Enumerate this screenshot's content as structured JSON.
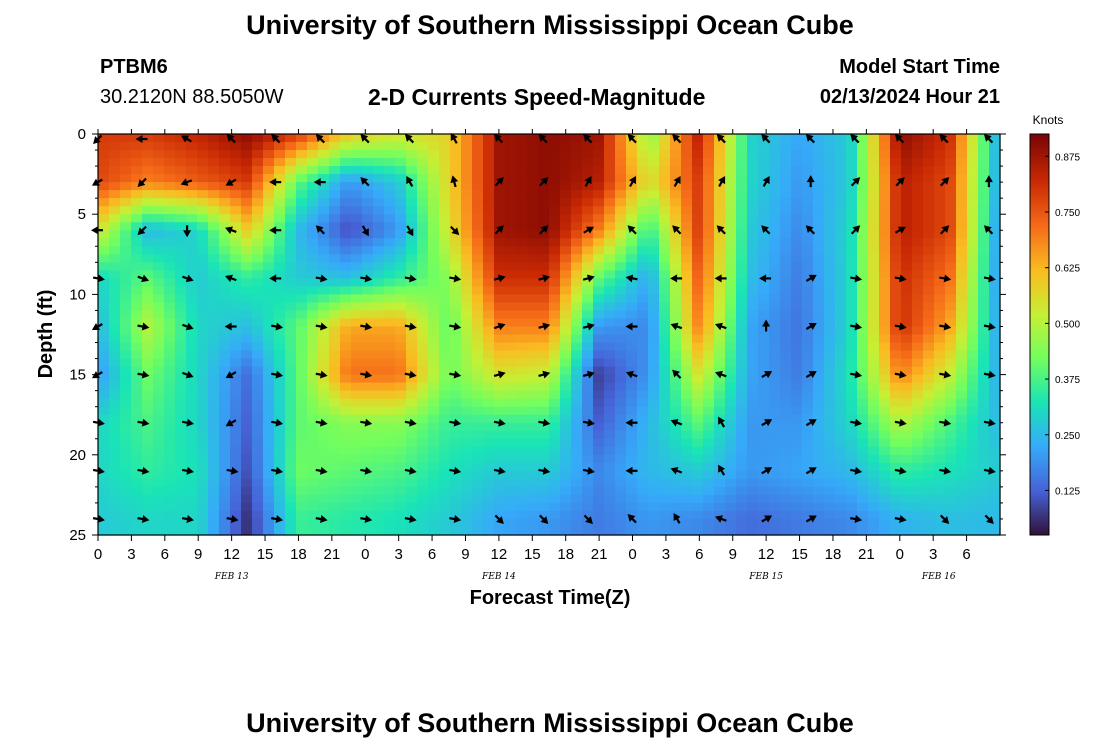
{
  "header": {
    "title": "University of Southern Mississippi Ocean Cube",
    "station": "PTBM6",
    "coords": "30.2120N  88.5050W",
    "subtitle": "2-D Currents Speed-Magnitude",
    "model_start_label": "Model Start Time",
    "model_start_value": "02/13/2024 Hour 21"
  },
  "footer": {
    "title": "University of Southern Mississippi Ocean Cube"
  },
  "chart_data": {
    "type": "heatmap",
    "xlabel": "Forecast Time(Z)",
    "ylabel": "Depth (ft)",
    "y_ticks": [
      "0",
      "5",
      "10",
      "15",
      "20",
      "25"
    ],
    "y_range": [
      0,
      25
    ],
    "x_range_hours": [
      0,
      81
    ],
    "x_ticks": [
      "0",
      "3",
      "6",
      "9",
      "12",
      "15",
      "18",
      "21",
      "0",
      "3",
      "6",
      "9",
      "12",
      "15",
      "18",
      "21",
      "0",
      "3",
      "6",
      "9",
      "12",
      "15",
      "18",
      "21",
      "0",
      "3",
      "6"
    ],
    "date_labels": [
      {
        "text": "FEB 13",
        "hour": 12
      },
      {
        "text": "FEB 14",
        "hour": 36
      },
      {
        "text": "FEB 15",
        "hour": 60
      },
      {
        "text": "FEB 16",
        "hour": 75.5
      }
    ],
    "colorbar": {
      "unit": "Knots",
      "range": [
        0.025,
        0.925
      ],
      "ticks": [
        "0.125",
        "0.250",
        "0.375",
        "0.500",
        "0.625",
        "0.750",
        "0.875"
      ],
      "tick_values": [
        0.125,
        0.25,
        0.375,
        0.5,
        0.625,
        0.75,
        0.875
      ],
      "colormap": [
        "#30123b",
        "#4662d7",
        "#36aaf9",
        "#1ae4b6",
        "#72fe5e",
        "#c7ef34",
        "#fabb21",
        "#f66b19",
        "#ca2a04",
        "#7a0403"
      ]
    },
    "depths": [
      0,
      3,
      6,
      9,
      12,
      15,
      18,
      21,
      24
    ],
    "hours": [
      0,
      4.5,
      9,
      13.5,
      18,
      22.5,
      27,
      31.5,
      36,
      40.5,
      45,
      49.5,
      54,
      58.5,
      63,
      67.5,
      72,
      76.5,
      81
    ],
    "speed": [
      [
        0.8,
        0.8,
        0.84,
        0.9,
        0.8,
        0.6,
        0.55,
        0.58,
        0.88,
        0.9,
        0.88,
        0.45,
        0.85,
        0.3,
        0.22,
        0.28,
        0.9,
        0.82,
        0.2
      ],
      [
        0.78,
        0.7,
        0.75,
        0.8,
        0.4,
        0.2,
        0.28,
        0.58,
        0.88,
        0.9,
        0.85,
        0.55,
        0.8,
        0.3,
        0.2,
        0.28,
        0.85,
        0.78,
        0.2
      ],
      [
        0.55,
        0.25,
        0.3,
        0.6,
        0.25,
        0.1,
        0.2,
        0.55,
        0.88,
        0.9,
        0.7,
        0.35,
        0.8,
        0.28,
        0.18,
        0.3,
        0.85,
        0.78,
        0.18
      ],
      [
        0.3,
        0.4,
        0.28,
        0.35,
        0.28,
        0.26,
        0.35,
        0.45,
        0.82,
        0.82,
        0.4,
        0.22,
        0.75,
        0.26,
        0.16,
        0.3,
        0.82,
        0.72,
        0.18
      ],
      [
        0.25,
        0.5,
        0.3,
        0.26,
        0.4,
        0.65,
        0.65,
        0.4,
        0.7,
        0.7,
        0.2,
        0.18,
        0.7,
        0.22,
        0.15,
        0.3,
        0.82,
        0.65,
        0.2
      ],
      [
        0.2,
        0.42,
        0.3,
        0.14,
        0.4,
        0.72,
        0.72,
        0.42,
        0.55,
        0.52,
        0.08,
        0.2,
        0.55,
        0.22,
        0.16,
        0.32,
        0.7,
        0.52,
        0.22
      ],
      [
        0.3,
        0.38,
        0.3,
        0.12,
        0.4,
        0.45,
        0.45,
        0.36,
        0.36,
        0.36,
        0.12,
        0.25,
        0.4,
        0.2,
        0.2,
        0.3,
        0.5,
        0.38,
        0.25
      ],
      [
        0.3,
        0.35,
        0.32,
        0.1,
        0.42,
        0.4,
        0.38,
        0.32,
        0.28,
        0.28,
        0.18,
        0.25,
        0.28,
        0.2,
        0.22,
        0.25,
        0.35,
        0.32,
        0.28
      ],
      [
        0.28,
        0.3,
        0.3,
        0.06,
        0.36,
        0.34,
        0.32,
        0.28,
        0.22,
        0.2,
        0.16,
        0.2,
        0.18,
        0.14,
        0.16,
        0.18,
        0.24,
        0.26,
        0.25
      ]
    ],
    "arrow_hours": [
      0,
      4,
      8,
      12,
      16,
      20,
      24,
      28,
      32,
      36,
      40,
      44,
      48,
      52,
      56,
      60,
      64,
      68,
      72,
      76,
      80
    ],
    "arrow_depths": [
      0,
      3,
      6,
      9,
      12,
      15,
      18,
      21,
      24
    ],
    "arrow_angles_deg": [
      [
        135,
        180,
        210,
        225,
        225,
        225,
        225,
        225,
        240,
        225,
        225,
        225,
        225,
        225,
        225,
        225,
        225,
        225,
        225,
        225,
        225
      ],
      [
        150,
        135,
        160,
        150,
        180,
        180,
        225,
        240,
        255,
        315,
        315,
        300,
        300,
        300,
        300,
        300,
        270,
        315,
        315,
        315,
        270
      ],
      [
        180,
        135,
        90,
        200,
        180,
        225,
        60,
        60,
        45,
        315,
        315,
        330,
        225,
        225,
        225,
        225,
        225,
        315,
        330,
        315,
        225
      ],
      [
        10,
        20,
        20,
        200,
        180,
        10,
        10,
        10,
        10,
        345,
        345,
        345,
        190,
        180,
        180,
        180,
        330,
        10,
        10,
        10,
        10
      ],
      [
        150,
        10,
        20,
        180,
        10,
        10,
        10,
        10,
        10,
        340,
        345,
        345,
        180,
        200,
        200,
        270,
        330,
        10,
        10,
        10,
        10
      ],
      [
        150,
        10,
        20,
        150,
        10,
        10,
        10,
        10,
        10,
        345,
        345,
        345,
        200,
        225,
        200,
        330,
        330,
        10,
        10,
        10,
        10
      ],
      [
        10,
        10,
        10,
        150,
        10,
        10,
        10,
        10,
        10,
        10,
        10,
        10,
        180,
        200,
        240,
        330,
        330,
        10,
        10,
        10,
        10
      ],
      [
        10,
        10,
        10,
        10,
        10,
        10,
        10,
        10,
        10,
        10,
        10,
        10,
        180,
        200,
        240,
        330,
        330,
        10,
        10,
        10,
        10
      ],
      [
        10,
        10,
        10,
        10,
        10,
        10,
        10,
        10,
        10,
        45,
        45,
        45,
        225,
        240,
        200,
        330,
        330,
        10,
        10,
        45,
        45
      ]
    ]
  }
}
